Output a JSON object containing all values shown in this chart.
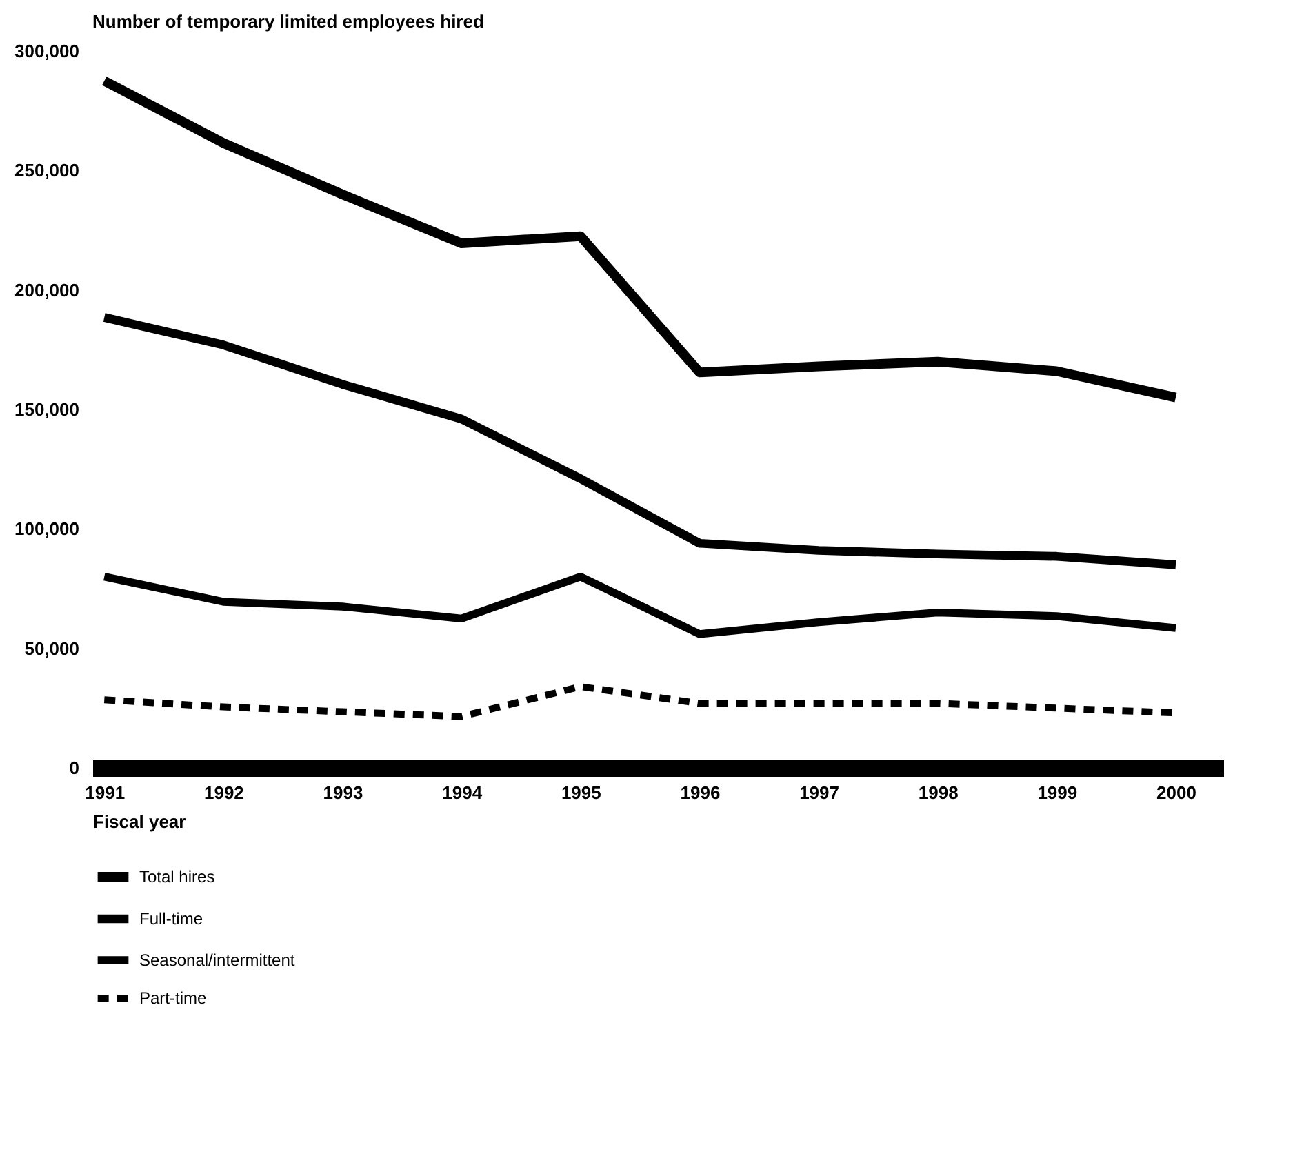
{
  "chart_data": {
    "type": "line",
    "title": "Number of temporary limited employees hired",
    "xlabel": "Fiscal year",
    "categories": [
      "1991",
      "1992",
      "1993",
      "1994",
      "1995",
      "1996",
      "1997",
      "1998",
      "1999",
      "2000"
    ],
    "series": [
      {
        "name": "Total hires",
        "color": "#000000",
        "values": [
          287500,
          261500,
          240000,
          219500,
          222500,
          165500,
          168000,
          170000,
          166000,
          155000
        ]
      },
      {
        "name": "Full-time",
        "color": "#000000",
        "values": [
          188500,
          177000,
          160500,
          146000,
          121000,
          94000,
          91000,
          89500,
          88500,
          85000
        ]
      },
      {
        "name": "Seasonal/intermittent",
        "color": "#000000",
        "values": [
          80000,
          69500,
          67500,
          62500,
          80000,
          56000,
          61000,
          65000,
          63500,
          58500
        ]
      },
      {
        "name": "Part-time",
        "color": "#000000",
        "line_style": "dashed",
        "values": [
          28500,
          25500,
          23500,
          21500,
          34000,
          27000,
          27000,
          27000,
          25000,
          23000
        ]
      }
    ],
    "ylim": [
      0,
      300000
    ],
    "yticks": [
      0,
      {
        "value": 50000,
        "label": "50,000"
      },
      {
        "value": 100000,
        "label": "100,000"
      },
      {
        "value": 150000,
        "label": "150,000"
      },
      {
        "value": 200000,
        "label": "200,000"
      },
      {
        "value": 250000,
        "label": "250,000"
      },
      {
        "value": 300000,
        "label": "300,000"
      }
    ],
    "grid": false,
    "legend": "bottom left",
    "marker": "none",
    "line_style": "solid"
  }
}
